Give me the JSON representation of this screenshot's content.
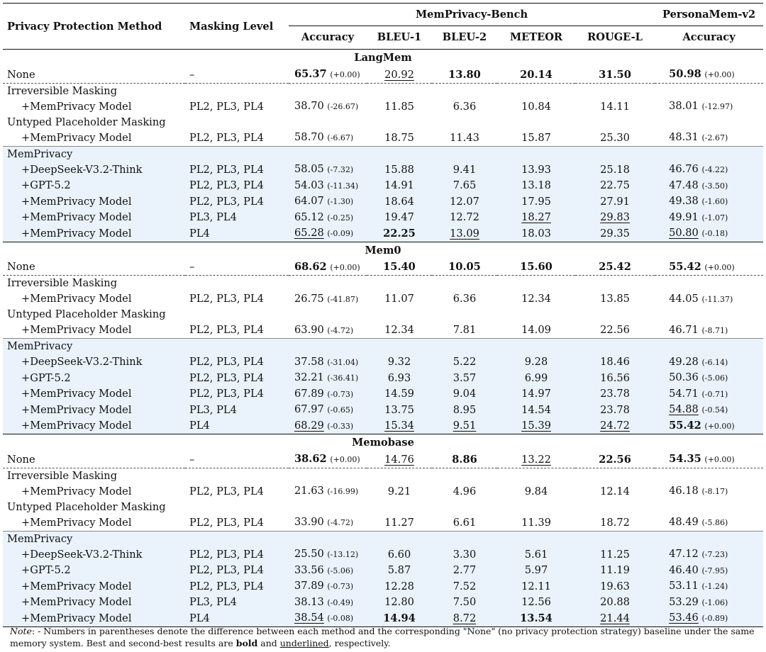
{
  "headers": {
    "method": "Privacy Protection Method",
    "level": "Masking Level",
    "group1": "MemPrivacy-Bench",
    "group2": "PersonaMem-v2",
    "cols": [
      "Accuracy",
      "BLEU-1",
      "BLEU-2",
      "METEOR",
      "ROUGE-L",
      "Accuracy"
    ]
  },
  "sections": [
    {
      "name": "LangMem",
      "rows": [
        {
          "method": "None",
          "level": "–",
          "acc": "65.37",
          "accd": "(+0.00)",
          "b1": "20.92",
          "b2": "13.80",
          "met": "20.14",
          "rl": "31.50",
          "pacc": "50.98",
          "paccd": "(+0.00)"
        },
        {
          "method": "Irreversible Masking"
        },
        {
          "method": "+MemPrivacy Model",
          "level": "PL2, PL3, PL4",
          "acc": "38.70",
          "accd": "(-26.67)",
          "b1": "11.85",
          "b2": "6.36",
          "met": "10.84",
          "rl": "14.11",
          "pacc": "38.01",
          "paccd": "(-12.97)"
        },
        {
          "method": "Untyped Placeholder Masking"
        },
        {
          "method": "+MemPrivacy Model",
          "level": "PL2, PL3, PL4",
          "acc": "58.70",
          "accd": "(-6.67)",
          "b1": "18.75",
          "b2": "11.43",
          "met": "15.87",
          "rl": "25.30",
          "pacc": "48.31",
          "paccd": "(-2.67)"
        },
        {
          "method": "MemPrivacy"
        },
        {
          "method": "+DeepSeek-V3.2-Think",
          "level": "PL2, PL3, PL4",
          "acc": "58.05",
          "accd": "(-7.32)",
          "b1": "15.88",
          "b2": "9.41",
          "met": "13.93",
          "rl": "25.18",
          "pacc": "46.76",
          "paccd": "(-4.22)"
        },
        {
          "method": "+GPT-5.2",
          "level": "PL2, PL3, PL4",
          "acc": "54.03",
          "accd": "(-11.34)",
          "b1": "14.91",
          "b2": "7.65",
          "met": "13.18",
          "rl": "22.75",
          "pacc": "47.48",
          "paccd": "(-3.50)"
        },
        {
          "method": "+MemPrivacy Model",
          "level": "PL2, PL3, PL4",
          "acc": "64.07",
          "accd": "(-1.30)",
          "b1": "18.64",
          "b2": "12.07",
          "met": "17.95",
          "rl": "27.91",
          "pacc": "49.38",
          "paccd": "(-1.60)"
        },
        {
          "method": "+MemPrivacy Model",
          "level": "PL3, PL4",
          "acc": "65.12",
          "accd": "(-0.25)",
          "b1": "19.47",
          "b2": "12.72",
          "met": "18.27",
          "rl": "29.83",
          "pacc": "49.91",
          "paccd": "(-1.07)"
        },
        {
          "method": "+MemPrivacy Model",
          "level": "PL4",
          "acc": "65.28",
          "accd": "(-0.09)",
          "b1": "22.25",
          "b2": "13.09",
          "met": "18.03",
          "rl": "29.35",
          "pacc": "50.80",
          "paccd": "(-0.18)"
        }
      ]
    },
    {
      "name": "Mem0",
      "rows": [
        {
          "method": "None",
          "level": "–",
          "acc": "68.62",
          "accd": "(+0.00)",
          "b1": "15.40",
          "b2": "10.05",
          "met": "15.60",
          "rl": "25.42",
          "pacc": "55.42",
          "paccd": "(+0.00)"
        },
        {
          "method": "Irreversible Masking"
        },
        {
          "method": "+MemPrivacy Model",
          "level": "PL2, PL3, PL4",
          "acc": "26.75",
          "accd": "(-41.87)",
          "b1": "11.07",
          "b2": "6.36",
          "met": "12.34",
          "rl": "13.85",
          "pacc": "44.05",
          "paccd": "(-11.37)"
        },
        {
          "method": "Untyped Placeholder Masking"
        },
        {
          "method": "+MemPrivacy Model",
          "level": "PL2, PL3, PL4",
          "acc": "63.90",
          "accd": "(-4.72)",
          "b1": "12.34",
          "b2": "7.81",
          "met": "14.09",
          "rl": "22.56",
          "pacc": "46.71",
          "paccd": "(-8.71)"
        },
        {
          "method": "MemPrivacy"
        },
        {
          "method": "+DeepSeek-V3.2-Think",
          "level": "PL2, PL3, PL4",
          "acc": "37.58",
          "accd": "(-31.04)",
          "b1": "9.32",
          "b2": "5.22",
          "met": "9.28",
          "rl": "18.46",
          "pacc": "49.28",
          "paccd": "(-6.14)"
        },
        {
          "method": "+GPT-5.2",
          "level": "PL2, PL3, PL4",
          "acc": "32.21",
          "accd": "(-36.41)",
          "b1": "6.93",
          "b2": "3.57",
          "met": "6.99",
          "rl": "16.56",
          "pacc": "50.36",
          "paccd": "(-5.06)"
        },
        {
          "method": "+MemPrivacy Model",
          "level": "PL2, PL3, PL4",
          "acc": "67.89",
          "accd": "(-0.73)",
          "b1": "14.59",
          "b2": "9.04",
          "met": "14.97",
          "rl": "23.78",
          "pacc": "54.71",
          "paccd": "(-0.71)"
        },
        {
          "method": "+MemPrivacy Model",
          "level": "PL3, PL4",
          "acc": "67.97",
          "accd": "(-0.65)",
          "b1": "13.75",
          "b2": "8.95",
          "met": "14.54",
          "rl": "23.78",
          "pacc": "54.88",
          "paccd": "(-0.54)"
        },
        {
          "method": "+MemPrivacy Model",
          "level": "PL4",
          "acc": "68.29",
          "accd": "(-0.33)",
          "b1": "15.34",
          "b2": "9.51",
          "met": "15.39",
          "rl": "24.72",
          "pacc": "55.42",
          "paccd": "(+0.00)"
        }
      ]
    },
    {
      "name": "Memobase",
      "rows": [
        {
          "method": "None",
          "level": "–",
          "acc": "38.62",
          "accd": "(+0.00)",
          "b1": "14.76",
          "b2": "8.86",
          "met": "13.22",
          "rl": "22.56",
          "pacc": "54.35",
          "paccd": "(+0.00)"
        },
        {
          "method": "Irreversible Masking"
        },
        {
          "method": "+MemPrivacy Model",
          "level": "PL2, PL3, PL4",
          "acc": "21.63",
          "accd": "(-16.99)",
          "b1": "9.21",
          "b2": "4.96",
          "met": "9.84",
          "rl": "12.14",
          "pacc": "46.18",
          "paccd": "(-8.17)"
        },
        {
          "method": "Untyped Placeholder Masking"
        },
        {
          "method": "+MemPrivacy Model",
          "level": "PL2, PL3, PL4",
          "acc": "33.90",
          "accd": "(-4.72)",
          "b1": "11.27",
          "b2": "6.61",
          "met": "11.39",
          "rl": "18.72",
          "pacc": "48.49",
          "paccd": "(-5.86)"
        },
        {
          "method": "MemPrivacy"
        },
        {
          "method": "+DeepSeek-V3.2-Think",
          "level": "PL2, PL3, PL4",
          "acc": "25.50",
          "accd": "(-13.12)",
          "b1": "6.60",
          "b2": "3.30",
          "met": "5.61",
          "rl": "11.25",
          "pacc": "47.12",
          "paccd": "(-7.23)"
        },
        {
          "method": "+GPT-5.2",
          "level": "PL2, PL3, PL4",
          "acc": "33.56",
          "accd": "(-5.06)",
          "b1": "5.87",
          "b2": "2.77",
          "met": "5.97",
          "rl": "11.19",
          "pacc": "46.40",
          "paccd": "(-7.95)"
        },
        {
          "method": "+MemPrivacy Model",
          "level": "PL2, PL3, PL4",
          "acc": "37.89",
          "accd": "(-0.73)",
          "b1": "12.28",
          "b2": "7.52",
          "met": "12.11",
          "rl": "19.63",
          "pacc": "53.11",
          "paccd": "(-1.24)"
        },
        {
          "method": "+MemPrivacy Model",
          "level": "PL3, PL4",
          "acc": "38.13",
          "accd": "(-0.49)",
          "b1": "12.80",
          "b2": "7.50",
          "met": "12.56",
          "rl": "20.88",
          "pacc": "53.29",
          "paccd": "(-1.06)"
        },
        {
          "method": "+MemPrivacy Model",
          "level": "PL4",
          "acc": "38.54",
          "accd": "(-0.08)",
          "b1": "14.94",
          "b2": "8.72",
          "met": "13.54",
          "rl": "21.44",
          "pacc": "53.46",
          "paccd": "(-0.89)"
        }
      ]
    }
  ],
  "note": {
    "label": "Note",
    "text1": ": - Numbers in parentheses denote the difference between each method and the corresponding \"None\" (no privacy protection strategy) baseline under the same memory system. Best and second-best results are ",
    "bold_word": "bold",
    "text2": " and ",
    "underline_word": "underlined",
    "text3": ", respectively."
  }
}
